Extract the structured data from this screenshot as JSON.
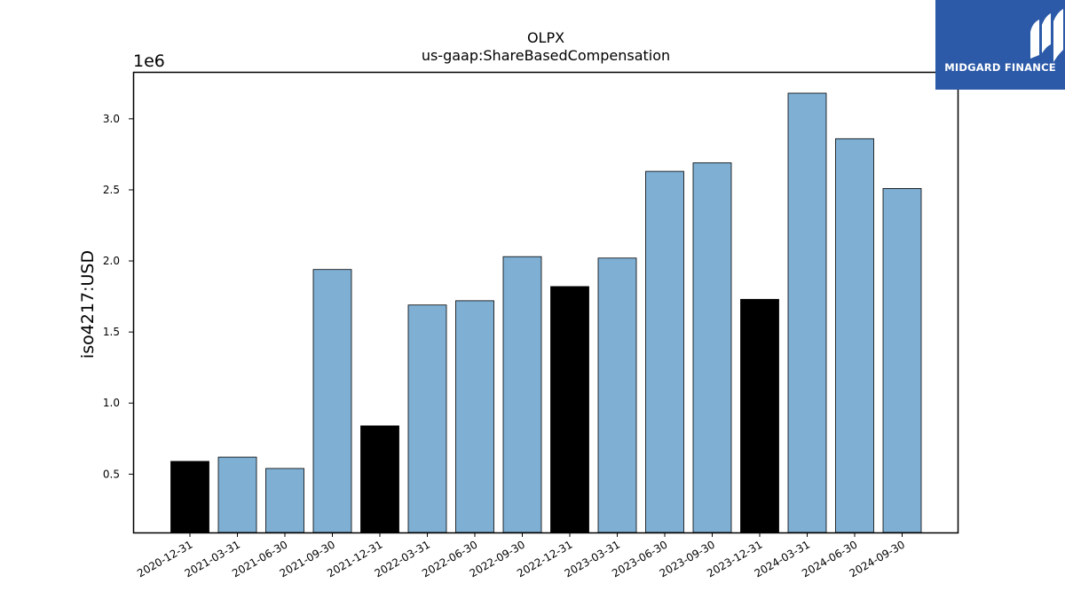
{
  "chart_data": {
    "type": "bar",
    "title": "OLPX",
    "subtitle": "us-gaap:ShareBasedCompensation",
    "ylabel": "iso4217:USD",
    "offset_label": "1e6",
    "categories": [
      "2020-12-31",
      "2021-03-31",
      "2021-06-30",
      "2021-09-30",
      "2021-12-31",
      "2022-03-31",
      "2022-06-30",
      "2022-09-30",
      "2022-12-31",
      "2023-03-31",
      "2023-06-30",
      "2023-09-30",
      "2023-12-31",
      "2024-03-31",
      "2024-06-30",
      "2024-09-30"
    ],
    "values": [
      590000,
      620000,
      540000,
      1940000,
      840000,
      1690000,
      1720000,
      2030000,
      1820000,
      2020000,
      2630000,
      2690000,
      1730000,
      3180000,
      2860000,
      2510000
    ],
    "highlight": [
      true,
      false,
      false,
      false,
      true,
      false,
      false,
      false,
      true,
      false,
      false,
      false,
      true,
      false,
      false,
      false
    ],
    "ylim": [
      90000,
      3330000
    ],
    "yticks": [
      500000,
      1000000,
      1500000,
      2000000,
      2500000,
      3000000
    ],
    "ytick_labels": [
      "0.5",
      "1.0",
      "1.5",
      "2.0",
      "2.5",
      "3.0"
    ],
    "colors": {
      "bar": "#7fb0d4",
      "highlight": "#000000",
      "edge": "#000000"
    },
    "grid": false
  },
  "logo": {
    "text": "MIDGARD FINANCE",
    "color": "#2c5aa8"
  }
}
